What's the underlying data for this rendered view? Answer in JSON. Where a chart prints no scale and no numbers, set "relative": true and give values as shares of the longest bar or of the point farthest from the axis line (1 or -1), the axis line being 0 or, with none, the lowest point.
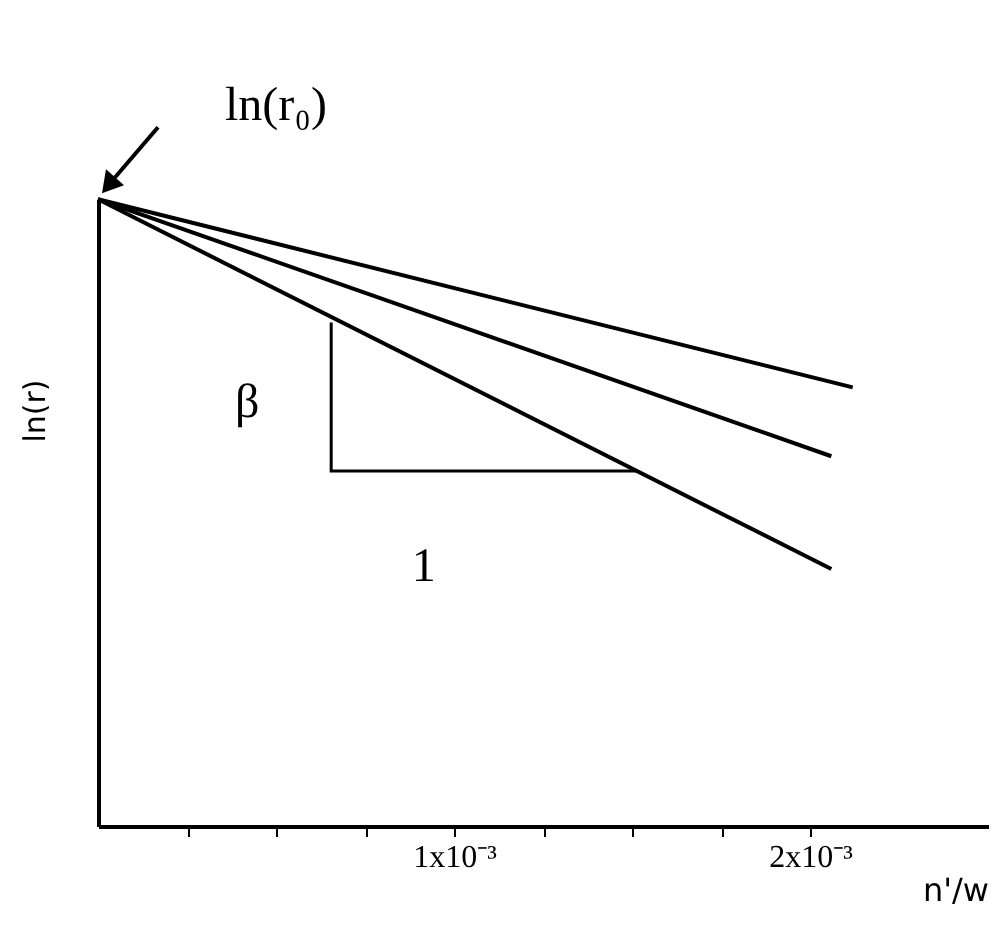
{
  "chart_data": {
    "type": "line",
    "relative": true,
    "xlabel": "n'/w",
    "ylabel": "ln(r)",
    "xlim": [
      0,
      0.0025
    ],
    "xticks": [
      {
        "value": 0.00025,
        "label": null
      },
      {
        "value": 0.0005,
        "label": null
      },
      {
        "value": 0.00075,
        "label": null
      },
      {
        "value": 0.001,
        "label": "1x10⁻³"
      },
      {
        "value": 0.00125,
        "label": null
      },
      {
        "value": 0.0015,
        "label": null
      },
      {
        "value": 0.00175,
        "label": null
      },
      {
        "value": 0.002,
        "label": "2x10⁻³"
      }
    ],
    "series": [
      {
        "color": "#000000",
        "x": [
          0,
          0.00212
        ],
        "values": [
          1,
          0.7
        ]
      },
      {
        "color": "#000000",
        "x": [
          0,
          0.00206
        ],
        "values": [
          1,
          0.59
        ]
      },
      {
        "color": "#000000",
        "x": [
          0,
          0.00206
        ],
        "values": [
          1,
          0.41
        ]
      }
    ],
    "annotations": [
      "ln(r₀)",
      "β",
      "1"
    ],
    "marker": "none",
    "line_style": "solid",
    "grid": false
  }
}
